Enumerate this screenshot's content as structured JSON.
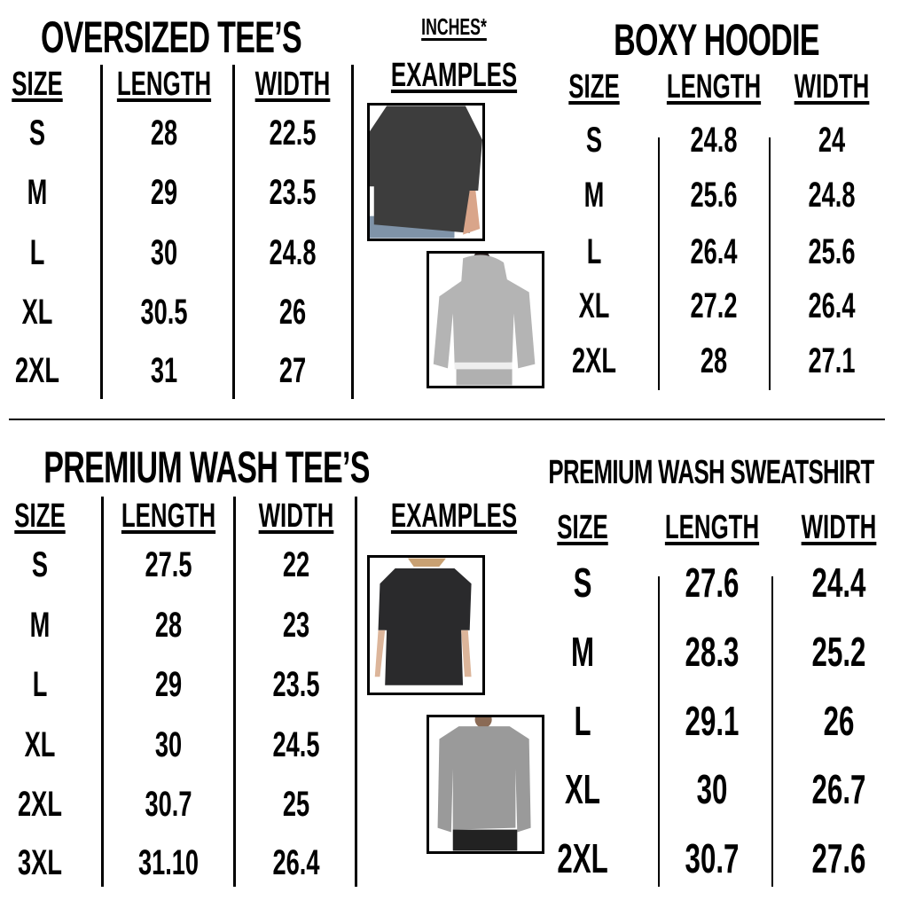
{
  "units_label": "INCHES*",
  "colors": {
    "text": "#000000",
    "background": "#ffffff",
    "tee_dark": "#3d3d3d",
    "hoodie_grey": "#b4b4b4",
    "wash_black": "#2a2a2c",
    "wash_grey": "#9a9a9a"
  },
  "oversized_tees": {
    "title": "OVERSIZED TEE’S",
    "headers": [
      "SIZE",
      "LENGTH",
      "WIDTH"
    ],
    "rows": [
      [
        "S",
        "28",
        "22.5"
      ],
      [
        "M",
        "29",
        "23.5"
      ],
      [
        "L",
        "30",
        "24.8"
      ],
      [
        "XL",
        "30.5",
        "26"
      ],
      [
        "2XL",
        "31",
        "27"
      ]
    ]
  },
  "examples_top": {
    "label": "EXAMPLES",
    "images": [
      {
        "icon": "dark-tee-photo"
      },
      {
        "icon": "grey-hoodie-photo"
      }
    ]
  },
  "boxy_hoodie": {
    "title": "BOXY HOODIE",
    "headers": [
      "SIZE",
      "LENGTH",
      "WIDTH"
    ],
    "rows": [
      [
        "S",
        "24.8",
        "24"
      ],
      [
        "M",
        "25.6",
        "24.8"
      ],
      [
        "L",
        "26.4",
        "25.6"
      ],
      [
        "XL",
        "27.2",
        "26.4"
      ],
      [
        "2XL",
        "28",
        "27.1"
      ]
    ]
  },
  "premium_wash_tees": {
    "title": "PREMIUM WASH TEE’S",
    "headers": [
      "SIZE",
      "LENGTH",
      "WIDTH"
    ],
    "rows": [
      [
        "S",
        "27.5",
        "22"
      ],
      [
        "M",
        "28",
        "23"
      ],
      [
        "L",
        "29",
        "23.5"
      ],
      [
        "XL",
        "30",
        "24.5"
      ],
      [
        "2XL",
        "30.7",
        "25"
      ],
      [
        "3XL",
        "31.10",
        "26.4"
      ]
    ]
  },
  "examples_bottom": {
    "label": "EXAMPLES",
    "images": [
      {
        "icon": "wash-tee-photo"
      },
      {
        "icon": "wash-sweatshirt-photo"
      }
    ]
  },
  "premium_wash_sweatshirt": {
    "title": "PREMIUM WASH SWEATSHIRT",
    "headers": [
      "SIZE",
      "LENGTH",
      "WIDTH"
    ],
    "rows": [
      [
        "S",
        "27.6",
        "24.4"
      ],
      [
        "M",
        "28.3",
        "25.2"
      ],
      [
        "L",
        "29.1",
        "26"
      ],
      [
        "XL",
        "30",
        "26.7"
      ],
      [
        "2XL",
        "30.7",
        "27.6"
      ]
    ]
  }
}
